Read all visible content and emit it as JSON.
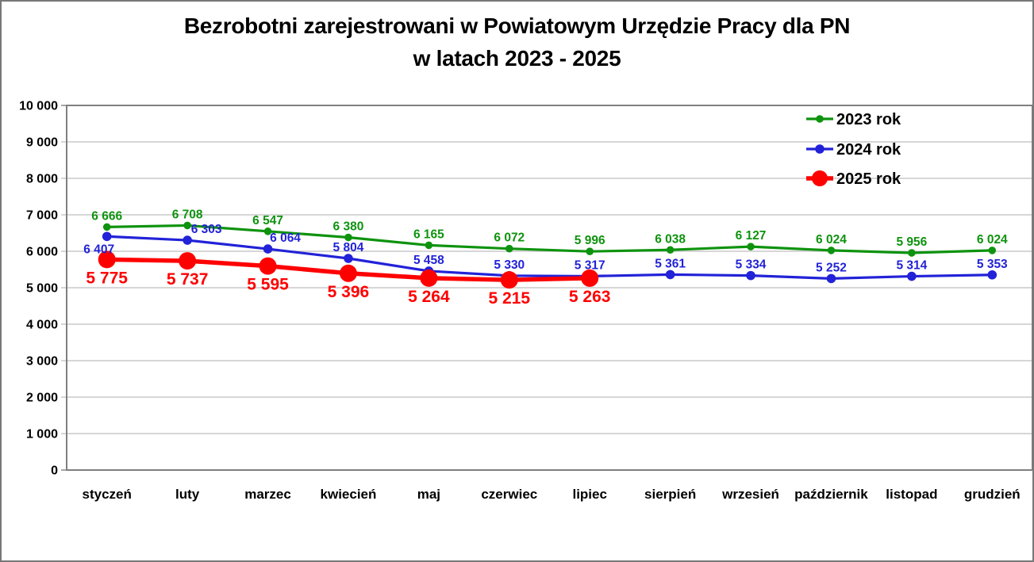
{
  "title": {
    "line1": "Bezrobotni zarejestrowani w Powiatowym Urzędzie Pracy dla PN",
    "line2": "w latach 2023 - 2025"
  },
  "chart_data": {
    "type": "line",
    "title": "Bezrobotni zarejestrowani w Powiatowym Urzędzie Pracy dla PN w latach 2023 - 2025",
    "categories": [
      "styczeń",
      "luty",
      "marzec",
      "kwiecień",
      "maj",
      "czerwiec",
      "lipiec",
      "sierpień",
      "wrzesień",
      "październik",
      "listopad",
      "grudzień"
    ],
    "y_ticks": [
      "0",
      "1 000",
      "2 000",
      "3 000",
      "4 000",
      "5 000",
      "6 000",
      "7 000",
      "8 000",
      "9 000",
      "10 000"
    ],
    "ylim": [
      0,
      10000
    ],
    "grid": true,
    "legend_position": "top-right-inside",
    "colors": {
      "grid": "#C8C8C8",
      "plot_border": "#7F7F7F",
      "axis_text": "#000000"
    },
    "series": [
      {
        "name": "2023 rok",
        "color": "#0E930E",
        "values": [
          6666,
          6708,
          6547,
          6380,
          6165,
          6072,
          5996,
          6038,
          6127,
          6024,
          5956,
          6024
        ],
        "marker": "small",
        "label_position": "above"
      },
      {
        "name": "2024 rok",
        "color": "#2222D8",
        "values": [
          6407,
          6303,
          6064,
          5804,
          5458,
          5330,
          5317,
          5361,
          5334,
          5252,
          5314,
          5353
        ],
        "marker": "medium",
        "label_position": "above"
      },
      {
        "name": "2025 rok",
        "color": "#FF0000",
        "values": [
          5775,
          5737,
          5595,
          5396,
          5264,
          5215,
          5263
        ],
        "marker": "large",
        "label_position": "below"
      }
    ]
  }
}
